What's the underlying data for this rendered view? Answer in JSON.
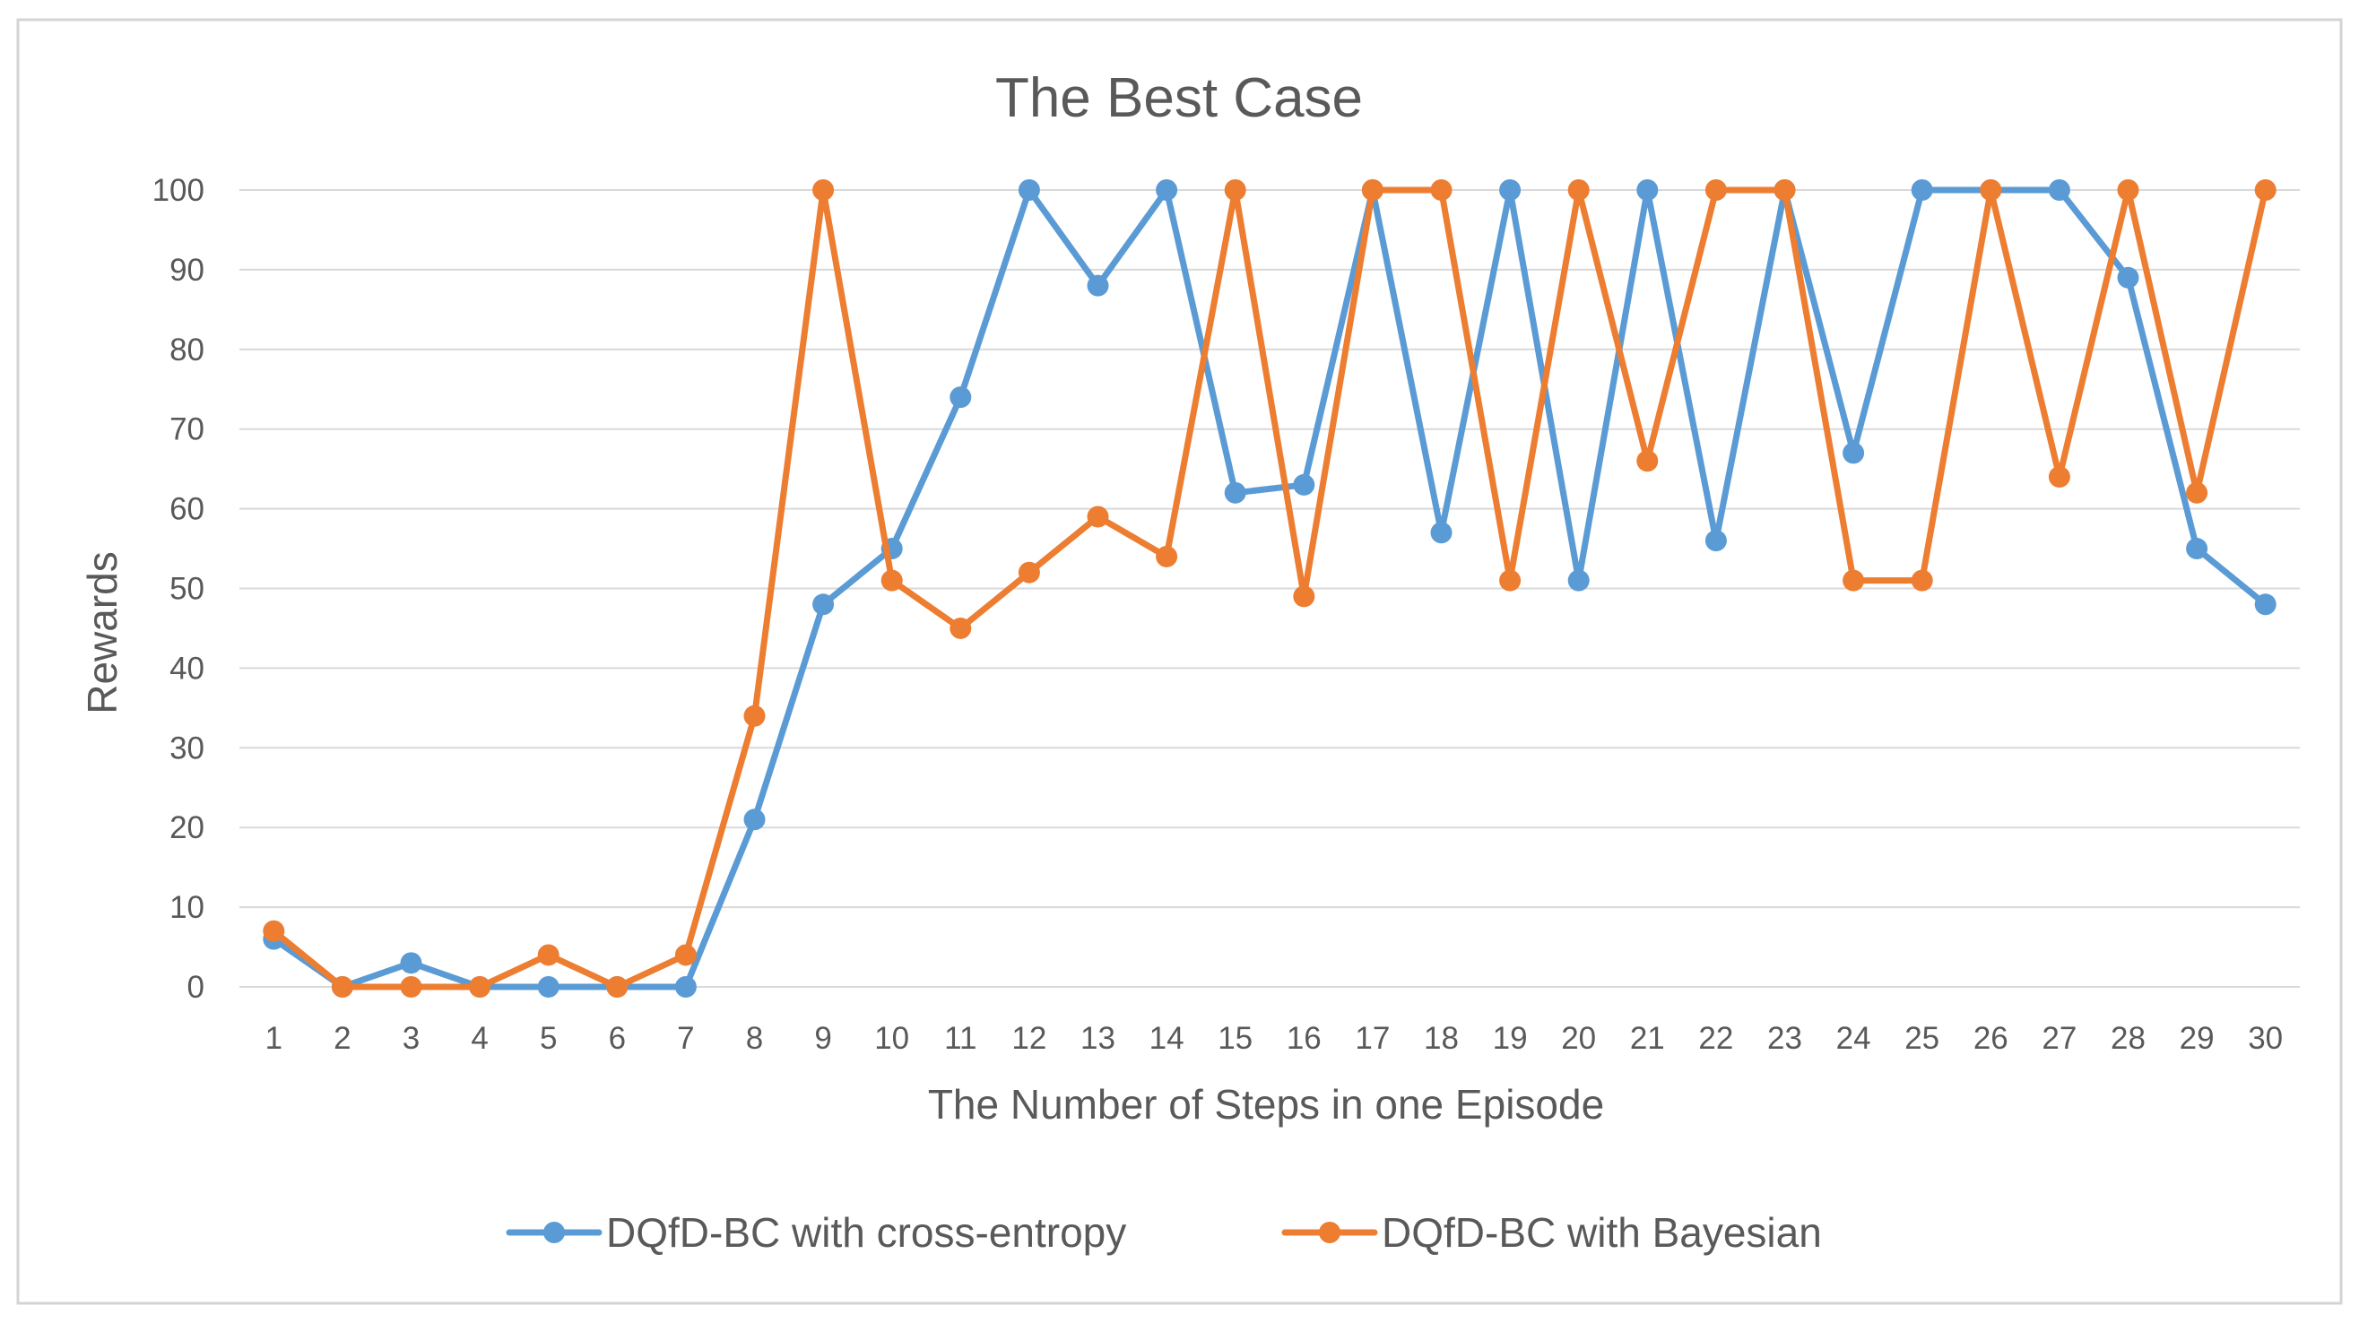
{
  "chart_data": {
    "type": "line",
    "title": "The Best Case",
    "xlabel": "The Number of Steps in one Episode",
    "ylabel": "Rewards",
    "ylim": [
      0,
      100
    ],
    "yticks": [
      0,
      10,
      20,
      30,
      40,
      50,
      60,
      70,
      80,
      90,
      100
    ],
    "grid": "horizontal",
    "legend_position": "bottom",
    "x": [
      1,
      2,
      3,
      4,
      5,
      6,
      7,
      8,
      9,
      10,
      11,
      12,
      13,
      14,
      15,
      16,
      17,
      18,
      19,
      20,
      21,
      22,
      23,
      24,
      25,
      26,
      27,
      28,
      29,
      30
    ],
    "series": [
      {
        "name": "DQfD-BC with cross-entropy",
        "color": "#5b9bd5",
        "values": [
          6,
          0,
          3,
          0,
          0,
          0,
          0,
          21,
          48,
          55,
          74,
          100,
          88,
          100,
          62,
          63,
          100,
          57,
          100,
          51,
          100,
          56,
          100,
          67,
          100,
          100,
          100,
          89,
          55,
          48
        ]
      },
      {
        "name": "DQfD-BC with Bayesian",
        "color": "#ed7d31",
        "values": [
          7,
          0,
          0,
          0,
          4,
          0,
          4,
          34,
          100,
          51,
          45,
          52,
          59,
          54,
          100,
          49,
          100,
          100,
          51,
          100,
          66,
          100,
          100,
          51,
          51,
          100,
          64,
          100,
          62,
          100
        ]
      }
    ]
  }
}
